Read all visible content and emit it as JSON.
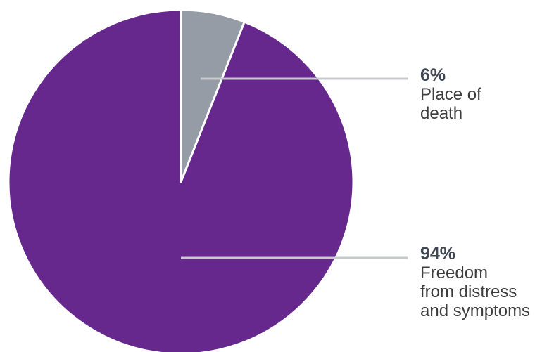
{
  "chart_data": {
    "type": "pie",
    "slices": [
      {
        "value": 6,
        "percent_label": "6%",
        "label": "Place of\ndeath",
        "color": "#959ca6"
      },
      {
        "value": 94,
        "percent_label": "94%",
        "label": "Freedom\nfrom distress\nand symptoms",
        "color": "#66288c"
      }
    ],
    "start_angle_deg": 0,
    "direction": "clockwise",
    "leader_line_color": "#c7c9cc",
    "slice_border_color": "#ffffff"
  }
}
